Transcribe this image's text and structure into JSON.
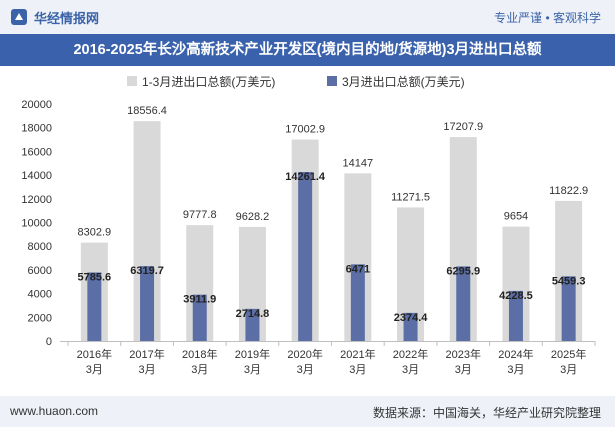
{
  "header": {
    "brand": "华经情报网",
    "slogan": "专业严谨 • 客观科学"
  },
  "title": "2016-2025年长沙高新技术产业开发区(境内目的地/货源地)3月进出口总额",
  "footer": {
    "url": "www.huaon.com",
    "source": "数据来源：中国海关，华经产业研究院整理"
  },
  "colors": {
    "total": "#d9d9d9",
    "march": "#5b6fa6",
    "title_bg": "#3a62ac",
    "header_bg": "#eef2f8"
  },
  "chart_data": {
    "type": "bar",
    "title": "2016-2025年长沙高新技术产业开发区(境内目的地/货源地)3月进出口总额",
    "categories": [
      "2016年\n3月",
      "2017年\n3月",
      "2018年\n3月",
      "2019年\n3月",
      "2020年\n3月",
      "2021年\n3月",
      "2022年\n3月",
      "2023年\n3月",
      "2024年\n3月",
      "2025年\n3月"
    ],
    "series": [
      {
        "name": "1-3月进出口总额(万美元)",
        "values": [
          8302.9,
          18556.4,
          9777.8,
          9628.2,
          17002.9,
          14147,
          11271.5,
          17207.9,
          9654,
          11822.9
        ],
        "labels": [
          "8302.9",
          "18556.4",
          "9777.8",
          "9628.2",
          "17002.9",
          "14147",
          "11271.5",
          "17207.9",
          "9654",
          "11822.9"
        ]
      },
      {
        "name": "3月进出口总额(万美元)",
        "values": [
          5785.6,
          6319.7,
          3911.9,
          2714.8,
          14261.4,
          6471,
          2374.4,
          6295.9,
          4228.5,
          5459.3
        ],
        "labels": [
          "5785.6",
          "6319.7",
          "3911.9",
          "2714.8",
          "14261.4",
          "6471",
          "2374.4",
          "6295.9",
          "4228.5",
          "5459.3"
        ]
      }
    ],
    "ylim": [
      0,
      20000
    ],
    "yticks": [
      "0",
      "2000",
      "4000",
      "6000",
      "8000",
      "10000",
      "12000",
      "14000",
      "16000",
      "18000",
      "20000"
    ],
    "xlabel": "",
    "ylabel": "",
    "legend": "top",
    "grid": false
  }
}
